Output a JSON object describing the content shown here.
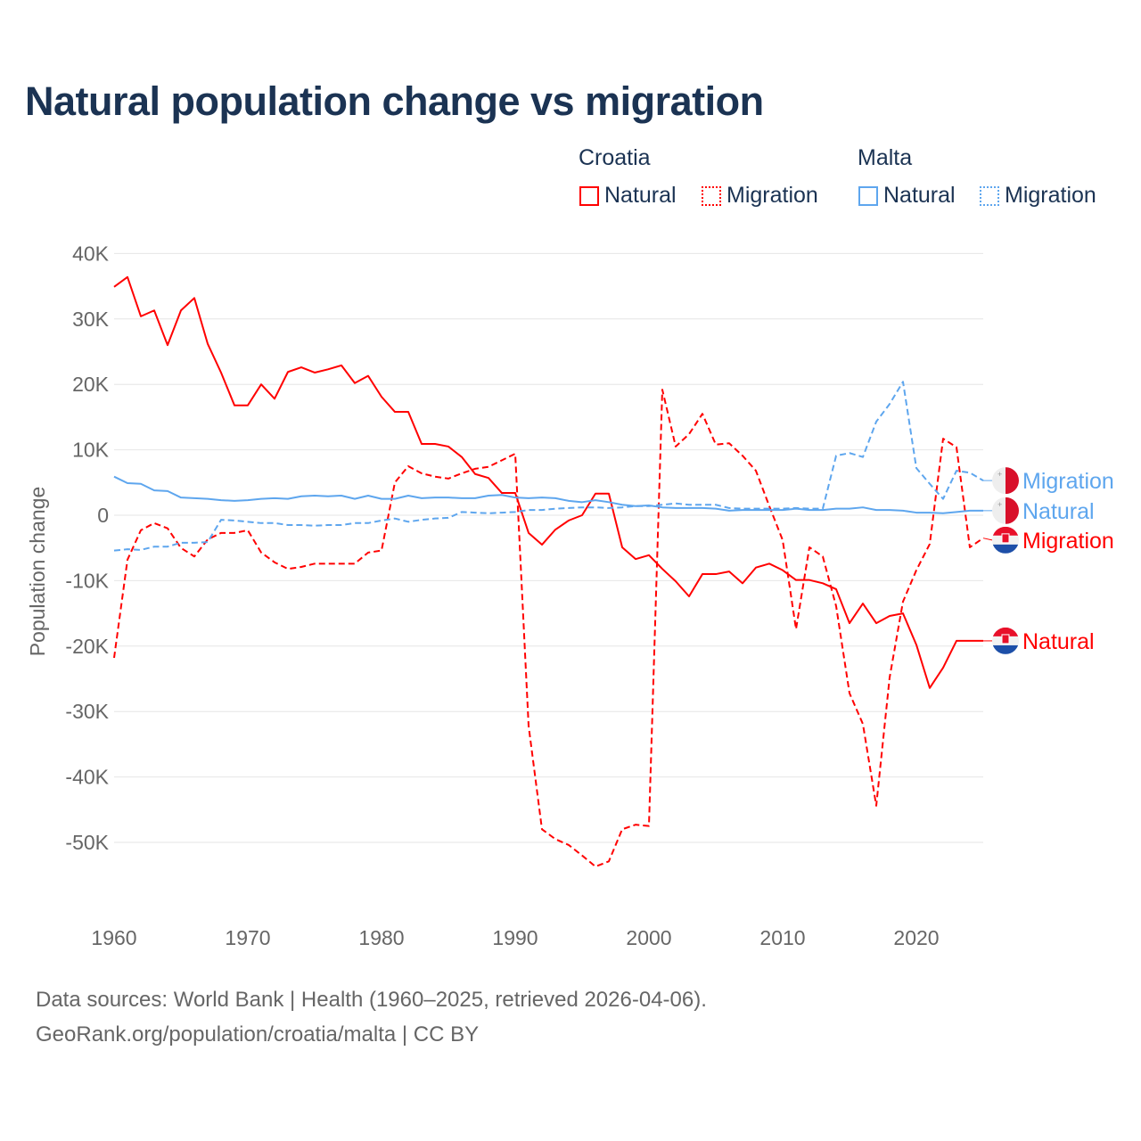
{
  "chart_data": {
    "type": "line",
    "title": "Natural population change vs migration",
    "xlabel": "",
    "ylabel": "Population change",
    "xlim": [
      1960,
      2025
    ],
    "ylim": [
      -50000,
      40000
    ],
    "grid": true,
    "x_ticks": [
      1960,
      1970,
      1980,
      1990,
      2000,
      2010,
      2020
    ],
    "x_tick_labels": [
      "1960",
      "1970",
      "1980",
      "1990",
      "2000",
      "2010",
      "2020"
    ],
    "y_ticks": [
      40000,
      30000,
      20000,
      10000,
      0,
      -10000,
      -20000,
      -30000,
      -40000,
      -50000
    ],
    "y_tick_labels": [
      "40K",
      "30K",
      "20K",
      "10K",
      "0",
      "-10K",
      "-20K",
      "-30K",
      "-40K",
      "-50K"
    ],
    "legend": {
      "placement": "top-right",
      "groups": [
        {
          "label": "Croatia",
          "items": [
            "Natural",
            "Migration"
          ]
        },
        {
          "label": "Malta",
          "items": [
            "Natural",
            "Migration"
          ]
        }
      ]
    },
    "start_year": 1960,
    "series": [
      {
        "name": "Croatia Natural",
        "country": "Croatia",
        "label": "Natural",
        "color": "#ff0000",
        "dash": false,
        "values": [
          34.9,
          36.4,
          30.4,
          31.3,
          26.0,
          31.3,
          33.2,
          26.2,
          21.8,
          16.8,
          16.8,
          20.0,
          17.8,
          21.9,
          22.6,
          21.8,
          22.3,
          22.9,
          20.2,
          21.3,
          18.1,
          15.8,
          15.8,
          10.9,
          10.9,
          10.5,
          8.9,
          6.3,
          5.7,
          3.4,
          3.4,
          -2.7,
          -4.5,
          -2.2,
          -0.8,
          0.0,
          3.3,
          3.3,
          -4.9,
          -6.7,
          -6.1,
          -8.2,
          -10.1,
          -12.4,
          -9.0,
          -9.0,
          -8.6,
          -10.4,
          -8.0,
          -7.4,
          -8.4,
          -9.9,
          -9.9,
          -10.4,
          -11.3,
          -16.5,
          -13.5,
          -16.5,
          -15.4,
          -15.0,
          -19.8,
          -26.4,
          -23.3,
          -19.2,
          -19.2,
          -19.2
        ]
      },
      {
        "name": "Croatia Migration",
        "country": "Croatia",
        "label": "Migration",
        "color": "#ff0000",
        "dash": true,
        "values": [
          -21.8,
          -6.8,
          -2.3,
          -1.2,
          -2.0,
          -5.0,
          -6.3,
          -3.7,
          -2.7,
          -2.7,
          -2.3,
          -5.7,
          -7.2,
          -8.2,
          -7.9,
          -7.4,
          -7.4,
          -7.4,
          -7.4,
          -5.7,
          -5.4,
          5.0,
          7.5,
          6.4,
          5.9,
          5.6,
          6.4,
          7.1,
          7.4,
          8.4,
          9.4,
          -32.2,
          -48.0,
          -49.5,
          -50.4,
          -52.0,
          -53.7,
          -52.9,
          -48.0,
          -47.3,
          -47.5,
          19.2,
          10.5,
          12.4,
          15.5,
          10.8,
          11.0,
          9.1,
          6.8,
          1.4,
          -3.8,
          -17.4,
          -4.9,
          -6.3,
          -13.9,
          -27.2,
          -31.9,
          -44.4,
          -24.8,
          -13.2,
          -8.4,
          -4.4,
          11.7,
          10.4,
          -4.9,
          -3.5
        ]
      },
      {
        "name": "Malta Natural",
        "country": "Malta",
        "label": "Natural",
        "color": "#5ea6ee",
        "dash": false,
        "values": [
          5.9,
          4.9,
          4.8,
          3.8,
          3.7,
          2.7,
          2.6,
          2.5,
          2.3,
          2.2,
          2.3,
          2.5,
          2.6,
          2.5,
          2.9,
          3.0,
          2.9,
          3.0,
          2.5,
          3.0,
          2.5,
          2.5,
          3.0,
          2.6,
          2.7,
          2.7,
          2.6,
          2.6,
          3.0,
          3.1,
          2.7,
          2.6,
          2.7,
          2.6,
          2.2,
          2.0,
          2.3,
          2.0,
          1.6,
          1.4,
          1.5,
          1.2,
          1.1,
          1.1,
          1.1,
          1.0,
          0.7,
          0.8,
          0.8,
          0.8,
          0.8,
          1.0,
          0.8,
          0.8,
          1.0,
          1.0,
          1.2,
          0.8,
          0.8,
          0.7,
          0.4,
          0.4,
          0.3,
          0.5,
          0.7,
          0.7
        ]
      },
      {
        "name": "Malta Migration",
        "country": "Malta",
        "label": "Migration",
        "color": "#5ea6ee",
        "dash": true,
        "values": [
          -5.4,
          -5.2,
          -5.3,
          -4.8,
          -4.8,
          -4.2,
          -4.2,
          -4.1,
          -0.7,
          -0.8,
          -1.0,
          -1.2,
          -1.2,
          -1.5,
          -1.5,
          -1.6,
          -1.5,
          -1.5,
          -1.2,
          -1.2,
          -0.8,
          -0.5,
          -1.0,
          -0.7,
          -0.5,
          -0.4,
          0.5,
          0.4,
          0.3,
          0.4,
          0.5,
          0.8,
          0.8,
          1.0,
          1.1,
          1.2,
          1.2,
          1.1,
          1.2,
          1.4,
          1.4,
          1.6,
          1.8,
          1.6,
          1.6,
          1.6,
          1.1,
          1.0,
          1.0,
          1.0,
          1.0,
          1.1,
          1.0,
          1.0,
          9.1,
          9.5,
          8.9,
          14.3,
          17.0,
          20.4,
          7.2,
          4.8,
          2.5,
          6.8,
          6.5,
          5.3
        ]
      }
    ],
    "units": "thousands"
  },
  "footer": {
    "line1": "Data sources: World Bank | Health (1960–2025, retrieved 2026-04-06).",
    "line2": "GeoRank.org/population/croatia/malta | CC BY"
  }
}
